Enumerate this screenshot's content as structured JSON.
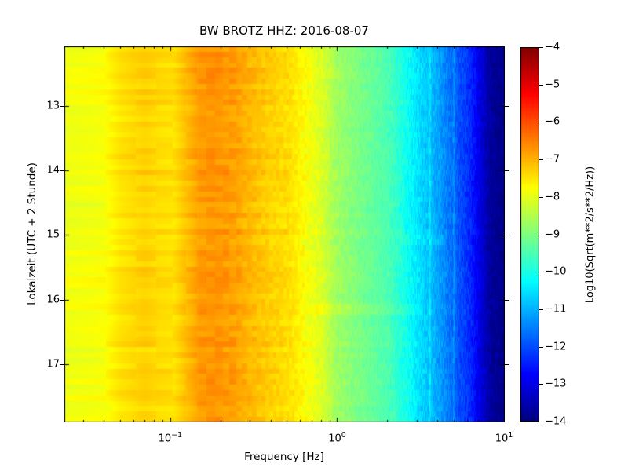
{
  "figure": {
    "background_color": "#ffffff",
    "axis_color": "#000000",
    "text_color": "#000000"
  },
  "chart_data": {
    "type": "heatmap",
    "subtype": "spectrogram",
    "title": "BW BROTZ HHZ: 2016-08-07",
    "colormap": "jet",
    "x_axis": {
      "label": "Frequency [Hz]",
      "scale": "log",
      "range_hz": [
        0.0232,
        10.1
      ],
      "major_ticks": [
        {
          "value_hz": 0.1,
          "base": "10",
          "exponent": -1
        },
        {
          "value_hz": 1.0,
          "base": "10",
          "exponent": 0
        },
        {
          "value_hz": 10.0,
          "base": "10",
          "exponent": 1
        }
      ],
      "minor_ticks_hz": [
        0.03,
        0.04,
        0.05,
        0.06,
        0.07,
        0.08,
        0.09,
        0.2,
        0.3,
        0.4,
        0.5,
        0.6,
        0.7,
        0.8,
        0.9,
        2,
        3,
        4,
        5,
        6,
        7,
        8,
        9
      ]
    },
    "y_axis": {
      "label": "Lokalzeit (UTC + 2 Stunde)",
      "scale": "linear",
      "range_hours": [
        12.08,
        17.9
      ],
      "major_ticks": [
        13,
        14,
        15,
        16,
        17
      ]
    },
    "colorbar": {
      "label": "Log10(Sqrt(m**2/s**2/Hz))",
      "range": [
        -14,
        -4
      ],
      "ticks": [
        -4,
        -5,
        -6,
        -7,
        -8,
        -9,
        -10,
        -11,
        -12,
        -13,
        -14
      ]
    },
    "spectrum_profile": {
      "comment_units": "median Log10(Sqrt(m**2/s**2/Hz)) versus frequency, read from colors via colorbar",
      "freq_hz": [
        0.023,
        0.04,
        0.05,
        0.07,
        0.085,
        0.105,
        0.125,
        0.15,
        0.19,
        0.24,
        0.3,
        0.4,
        0.52,
        0.65,
        0.8,
        1.0,
        1.4,
        2.0,
        2.5,
        3.0,
        3.6,
        4.1,
        4.7,
        5.4,
        6.3,
        7.4,
        8.2,
        9.0,
        10.1
      ],
      "log10_psd": [
        -7.9,
        -7.8,
        -7.5,
        -7.3,
        -7.4,
        -7.45,
        -7.1,
        -6.75,
        -6.7,
        -6.8,
        -7.05,
        -7.3,
        -7.45,
        -7.8,
        -8.1,
        -8.7,
        -9.1,
        -9.5,
        -10.0,
        -10.5,
        -10.9,
        -11.2,
        -11.6,
        -12.0,
        -12.4,
        -13.2,
        -13.7,
        -13.85,
        -13.9
      ]
    },
    "texture": {
      "time_rows": 70,
      "freq_bin_width_hz": 0.0205,
      "row_stripe_amплitude": 0.12,
      "bright_streaks_hz": [
        3.57,
        4.99
      ],
      "bright_patch_1": {
        "hours": [
          14.95,
          15.15
        ],
        "freq_hz": [
          2.3,
          4.3
        ],
        "boost": 0.3
      },
      "bright_patch_2": {
        "hours": [
          16.07,
          16.2
        ],
        "freq_hz": [
          0.7,
          3.2
        ],
        "boost": 0.2
      }
    }
  }
}
